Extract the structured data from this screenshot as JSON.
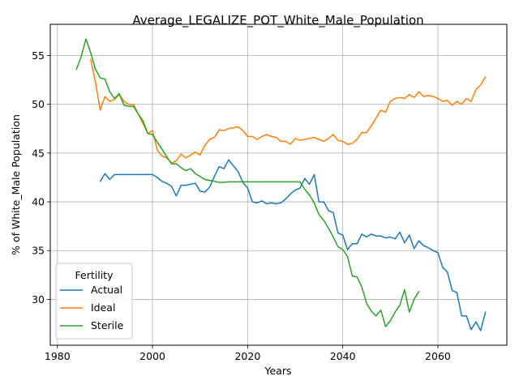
{
  "chart_data": {
    "type": "line",
    "title": "Average_LEGALIZE_POT_White_Male_Population",
    "xlabel": "Years",
    "ylabel": "% of White_Male Population",
    "xlim": [
      1978.5,
      2074.5
    ],
    "ylim": [
      25.3,
      58.2
    ],
    "xticks": [
      1980,
      2000,
      2020,
      2040,
      2060
    ],
    "yticks": [
      30,
      35,
      40,
      45,
      50,
      55
    ],
    "grid": true,
    "legend": {
      "title": "Fertility",
      "placement": "lower-left"
    },
    "series": [
      {
        "name": "Actual",
        "color": "#1f77b4",
        "x": [
          1989,
          1990,
          1991,
          1992,
          1993,
          1994,
          1995,
          1996,
          1997,
          1998,
          1999,
          2000,
          2001,
          2002,
          2003,
          2004,
          2005,
          2006,
          2007,
          2008,
          2009,
          2010,
          2011,
          2012,
          2013,
          2014,
          2015,
          2016,
          2017,
          2018,
          2019,
          2020,
          2021,
          2022,
          2023,
          2024,
          2025,
          2026,
          2027,
          2028,
          2029,
          2030,
          2031,
          2032,
          2033,
          2034,
          2035,
          2036,
          2037,
          2038,
          2039,
          2040,
          2041,
          2042,
          2043,
          2044,
          2045,
          2046,
          2047,
          2048,
          2049,
          2050,
          2051,
          2052,
          2053,
          2054,
          2055,
          2056,
          2057,
          2058,
          2059,
          2060,
          2061,
          2062,
          2063,
          2064,
          2065,
          2066,
          2067,
          2068,
          2069,
          2070
        ],
        "values": [
          42.1,
          42.9,
          42.3,
          42.8,
          42.8,
          42.8,
          42.8,
          42.8,
          42.8,
          42.8,
          42.8,
          42.8,
          42.5,
          42.1,
          41.9,
          41.6,
          40.6,
          41.7,
          41.7,
          41.8,
          41.9,
          41.1,
          41.0,
          41.5,
          42.6,
          43.6,
          43.4,
          44.3,
          43.7,
          43.1,
          42.0,
          41.4,
          40.0,
          39.9,
          40.1,
          39.8,
          39.9,
          39.8,
          39.9,
          40.3,
          40.8,
          41.2,
          41.4,
          42.4,
          41.8,
          42.8,
          40.0,
          40.0,
          39.1,
          38.9,
          36.8,
          36.6,
          35.1,
          35.7,
          35.7,
          36.7,
          36.4,
          36.7,
          36.5,
          36.5,
          36.3,
          36.4,
          36.2,
          36.9,
          35.8,
          36.6,
          35.2,
          36.0,
          35.5,
          35.3,
          35.0,
          34.8,
          33.3,
          32.8,
          30.9,
          30.7,
          28.3,
          28.3,
          26.9,
          27.7,
          26.8,
          28.7
        ]
      },
      {
        "name": "Ideal",
        "color": "#ff7f0e",
        "x": [
          1987,
          1988,
          1989,
          1990,
          1991,
          1992,
          1993,
          1994,
          1995,
          1996,
          1997,
          1998,
          1999,
          2000,
          2001,
          2002,
          2003,
          2004,
          2005,
          2006,
          2007,
          2008,
          2009,
          2010,
          2011,
          2012,
          2013,
          2014,
          2015,
          2016,
          2017,
          2018,
          2019,
          2020,
          2021,
          2022,
          2023,
          2024,
          2025,
          2026,
          2027,
          2028,
          2029,
          2030,
          2031,
          2032,
          2033,
          2034,
          2035,
          2036,
          2037,
          2038,
          2039,
          2040,
          2041,
          2042,
          2043,
          2044,
          2045,
          2046,
          2047,
          2048,
          2049,
          2050,
          2051,
          2052,
          2053,
          2054,
          2055,
          2056,
          2057,
          2058,
          2059,
          2060,
          2061,
          2062,
          2063,
          2064,
          2065,
          2066,
          2067,
          2068,
          2069,
          2070
        ],
        "values": [
          54.6,
          52.3,
          49.4,
          50.8,
          50.3,
          50.5,
          51.0,
          50.3,
          50.0,
          50.0,
          49.0,
          48.0,
          47.0,
          47.3,
          45.3,
          44.7,
          44.5,
          44.0,
          44.2,
          44.9,
          44.5,
          44.8,
          45.1,
          44.8,
          45.8,
          46.4,
          46.6,
          47.4,
          47.3,
          47.5,
          47.6,
          47.7,
          47.3,
          46.7,
          46.7,
          46.4,
          46.7,
          46.9,
          46.7,
          46.6,
          46.2,
          46.2,
          45.9,
          46.5,
          46.3,
          46.4,
          46.5,
          46.6,
          46.4,
          46.2,
          46.5,
          46.9,
          46.3,
          46.2,
          45.9,
          46.0,
          46.4,
          47.1,
          47.1,
          47.8,
          48.6,
          49.4,
          49.2,
          50.3,
          50.6,
          50.7,
          50.6,
          51.0,
          50.7,
          51.3,
          50.8,
          50.9,
          50.8,
          50.6,
          50.3,
          50.4,
          49.9,
          50.3,
          50.0,
          50.6,
          50.3,
          51.5,
          52.0,
          52.8
        ]
      },
      {
        "name": "Sterile",
        "color": "#2ca02c",
        "x": [
          1984,
          1985,
          1986,
          1987,
          1988,
          1989,
          1990,
          1991,
          1992,
          1993,
          1994,
          1995,
          1996,
          1997,
          1998,
          1999,
          2000,
          2001,
          2002,
          2003,
          2004,
          2005,
          2006,
          2007,
          2008,
          2009,
          2010,
          2011,
          2012,
          2013,
          2014,
          2015,
          2016,
          2017,
          2018,
          2019,
          2020,
          2021,
          2022,
          2023,
          2024,
          2025,
          2026,
          2027,
          2028,
          2029,
          2030,
          2031,
          2032,
          2033,
          2034,
          2035,
          2036,
          2037,
          2038,
          2039,
          2040,
          2041,
          2042,
          2043,
          2044,
          2045,
          2046,
          2047,
          2048,
          2049,
          2050,
          2051,
          2052,
          2053,
          2054,
          2055,
          2056
        ],
        "values": [
          53.6,
          54.9,
          56.7,
          55.3,
          53.6,
          52.7,
          52.6,
          51.3,
          50.6,
          51.1,
          49.9,
          49.8,
          49.8,
          49.0,
          48.3,
          47.0,
          46.9,
          46.1,
          45.4,
          44.6,
          43.9,
          43.9,
          43.5,
          43.2,
          43.4,
          42.9,
          42.6,
          42.3,
          42.2,
          42.1,
          42.0,
          42.0,
          42.05,
          42.05,
          42.05,
          42.05,
          42.05,
          42.05,
          42.05,
          42.05,
          42.05,
          42.05,
          42.05,
          42.05,
          42.05,
          42.05,
          42.05,
          42.05,
          41.3,
          40.7,
          39.9,
          38.7,
          38.1,
          37.3,
          36.4,
          35.4,
          35.1,
          34.4,
          32.4,
          32.3,
          31.3,
          29.6,
          28.8,
          28.3,
          28.9,
          27.2,
          27.8,
          28.7,
          29.4,
          31.0,
          28.7,
          30.0,
          30.8
        ]
      }
    ]
  }
}
